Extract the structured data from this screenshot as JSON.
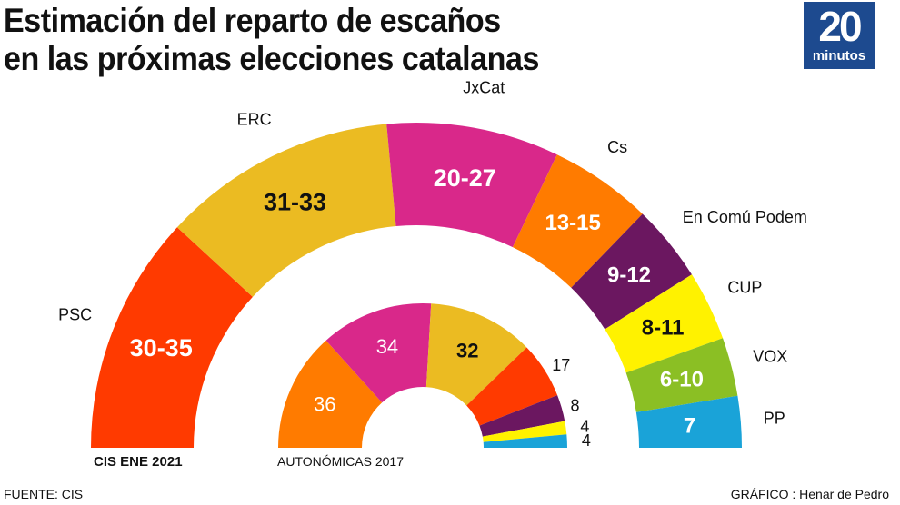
{
  "title_line1": "Estimación del reparto de escaños",
  "title_line2": "en las próximas elecciones catalanas",
  "logo": {
    "number": "20",
    "word": "minutos"
  },
  "footer": {
    "source": "FUENTE: CIS",
    "credit": "GRÁFICO : Henar de Pedro"
  },
  "chart_data": [
    {
      "type": "pie",
      "subtitle": "CIS ENE 2021",
      "parties": [
        "PSC",
        "ERC",
        "JxCat",
        "Cs",
        "En Comú Podem",
        "CUP",
        "VOX",
        "PP"
      ],
      "labels": [
        "30-35",
        "31-33",
        "20-27",
        "13-15",
        "9-12",
        "8-11",
        "6-10",
        "7"
      ],
      "ranges": [
        [
          30,
          35
        ],
        [
          31,
          33
        ],
        [
          20,
          27
        ],
        [
          13,
          15
        ],
        [
          9,
          12
        ],
        [
          8,
          11
        ],
        [
          6,
          10
        ],
        [
          7,
          7
        ]
      ],
      "colors": [
        "#ff3a00",
        "#ebbb22",
        "#d9288a",
        "#ff7b00",
        "#6b1760",
        "#fff200",
        "#8bbf24",
        "#1aa3d8"
      ],
      "text_colors": [
        "#fff",
        "#111",
        "#fff",
        "#fff",
        "#fff",
        "#111",
        "#fff",
        "#fff"
      ]
    },
    {
      "type": "pie",
      "subtitle": "AUTONÓMICAS 2017",
      "values": [
        36,
        34,
        32,
        17,
        8,
        4,
        4
      ],
      "labels": [
        "36",
        "34",
        "32",
        "17",
        "8",
        "4",
        "4"
      ],
      "colors": [
        "#ff7b00",
        "#d9288a",
        "#ebbb22",
        "#ff3a00",
        "#6b1760",
        "#fff200",
        "#1aa3d8"
      ],
      "text_colors": [
        "#fff",
        "#fff",
        "#111",
        "#111",
        "#111",
        "#111",
        "#111"
      ]
    }
  ]
}
